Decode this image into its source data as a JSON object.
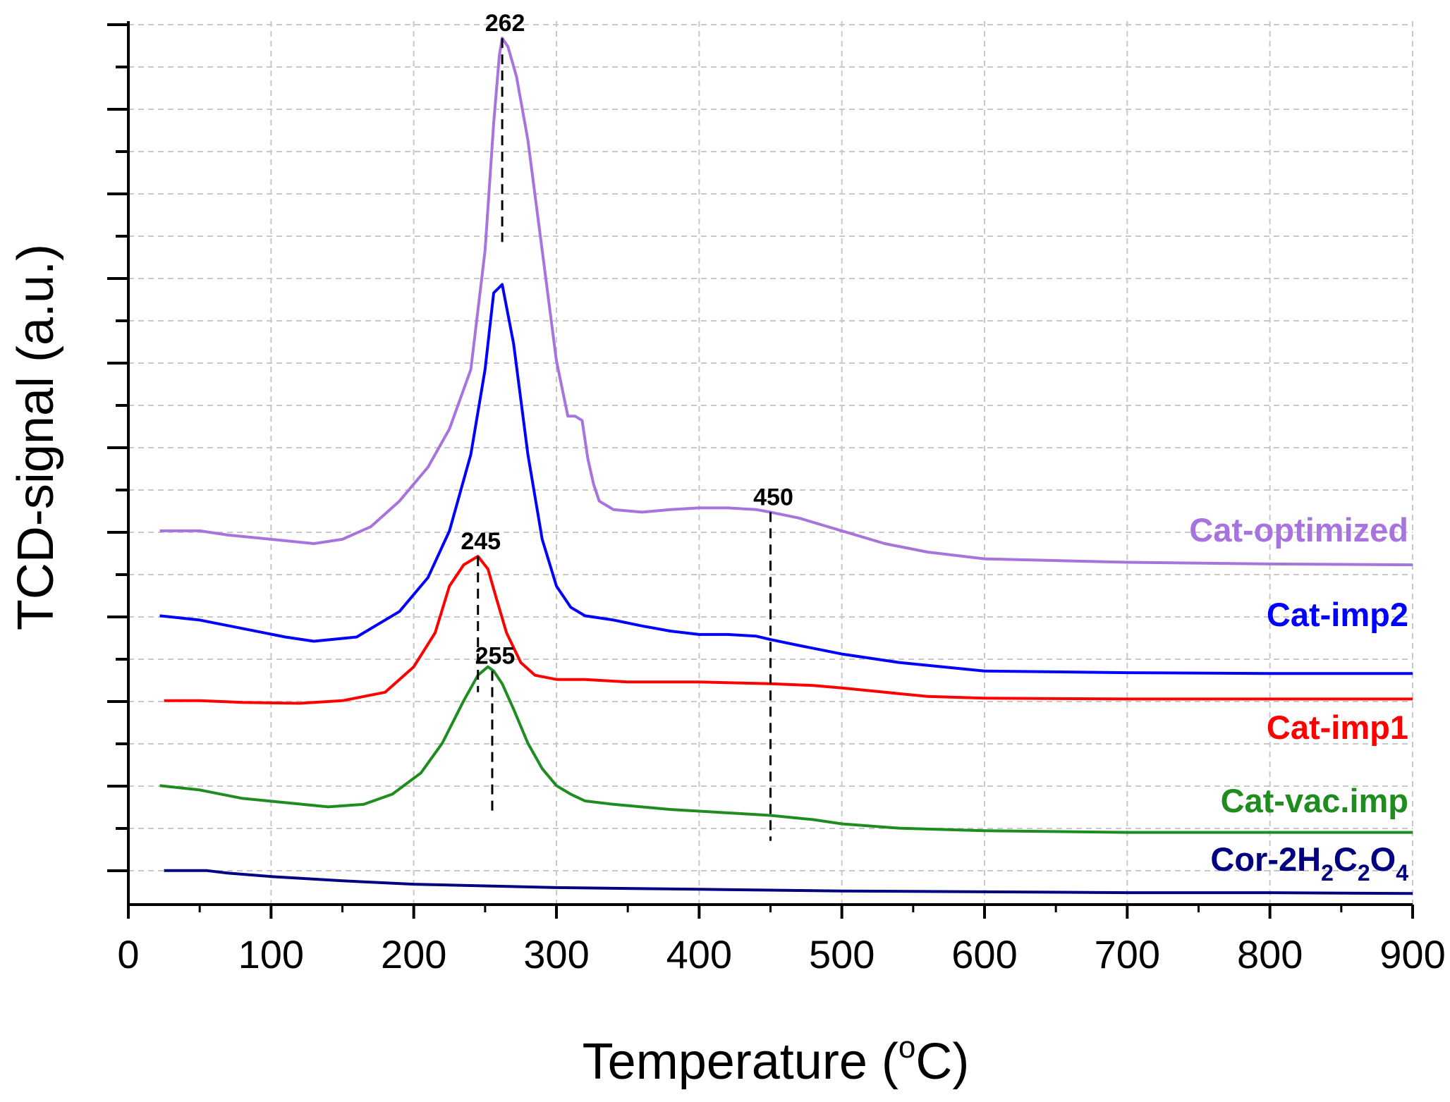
{
  "chart_data": {
    "type": "line",
    "xlabel_main": "Temperature (",
    "xlabel_sup": "o",
    "xlabel_end": "C)",
    "ylabel": "TCD-signal (a.u.)",
    "xlim": [
      0,
      900
    ],
    "ylim": [
      -0.4,
      10
    ],
    "x_ticks": [
      0,
      100,
      200,
      300,
      400,
      500,
      600,
      700,
      800,
      900
    ],
    "y_tick_labels_shown": false,
    "grid": true,
    "series": [
      {
        "name": "Cat-optimized",
        "color": "#a773dd",
        "x": [
          22,
          40,
          50,
          70,
          100,
          130,
          150,
          170,
          190,
          210,
          225,
          240,
          250,
          256,
          260,
          262,
          266,
          272,
          280,
          290,
          300,
          308,
          313,
          318,
          322,
          326,
          330,
          340,
          360,
          380,
          400,
          420,
          440,
          450,
          470,
          500,
          530,
          560,
          600,
          700,
          800,
          900
        ],
        "y": [
          4.0,
          4.0,
          4.0,
          3.95,
          3.9,
          3.85,
          3.9,
          4.05,
          4.35,
          4.75,
          5.2,
          5.9,
          7.3,
          8.8,
          9.6,
          9.8,
          9.7,
          9.35,
          8.6,
          7.3,
          6.0,
          5.35,
          5.35,
          5.3,
          4.85,
          4.55,
          4.35,
          4.25,
          4.22,
          4.25,
          4.27,
          4.27,
          4.25,
          4.22,
          4.15,
          4.0,
          3.85,
          3.75,
          3.67,
          3.63,
          3.61,
          3.6
        ]
      },
      {
        "name": "Cat-imp2",
        "color": "#0000ff",
        "x": [
          22,
          50,
          80,
          110,
          130,
          160,
          190,
          210,
          225,
          240,
          250,
          256,
          262,
          270,
          280,
          290,
          300,
          310,
          320,
          340,
          360,
          380,
          400,
          420,
          440,
          450,
          470,
          500,
          540,
          600,
          700,
          800,
          900
        ],
        "y": [
          3.0,
          2.95,
          2.85,
          2.75,
          2.7,
          2.75,
          3.05,
          3.45,
          4.0,
          4.9,
          5.9,
          6.8,
          6.9,
          6.2,
          4.9,
          3.9,
          3.35,
          3.1,
          3.0,
          2.95,
          2.88,
          2.82,
          2.78,
          2.78,
          2.76,
          2.72,
          2.65,
          2.55,
          2.45,
          2.35,
          2.33,
          2.32,
          2.32
        ]
      },
      {
        "name": "Cat-imp1",
        "color": "#ff0000",
        "x": [
          25,
          50,
          80,
          120,
          150,
          180,
          200,
          215,
          225,
          235,
          245,
          252,
          258,
          265,
          275,
          285,
          300,
          320,
          350,
          400,
          450,
          480,
          500,
          530,
          560,
          600,
          700,
          800,
          900
        ],
        "y": [
          2.0,
          2.0,
          1.98,
          1.97,
          2.0,
          2.1,
          2.4,
          2.8,
          3.35,
          3.6,
          3.7,
          3.55,
          3.2,
          2.8,
          2.45,
          2.3,
          2.25,
          2.25,
          2.22,
          2.22,
          2.2,
          2.18,
          2.15,
          2.1,
          2.05,
          2.03,
          2.02,
          2.02,
          2.02
        ]
      },
      {
        "name": "Cat-vac.imp",
        "color": "#1e8c1e",
        "x": [
          22,
          50,
          80,
          110,
          140,
          165,
          185,
          205,
          220,
          235,
          245,
          252,
          256,
          262,
          270,
          280,
          290,
          300,
          310,
          320,
          340,
          380,
          420,
          450,
          480,
          500,
          540,
          600,
          700,
          800,
          900
        ],
        "y": [
          1.0,
          0.95,
          0.85,
          0.8,
          0.75,
          0.78,
          0.9,
          1.15,
          1.5,
          2.0,
          2.3,
          2.4,
          2.35,
          2.2,
          1.9,
          1.5,
          1.2,
          1.0,
          0.9,
          0.82,
          0.78,
          0.72,
          0.68,
          0.65,
          0.6,
          0.55,
          0.5,
          0.47,
          0.45,
          0.45,
          0.45
        ]
      },
      {
        "name": "Cor-2H2C2O4",
        "color": "#000080",
        "x": [
          25,
          40,
          55,
          70,
          100,
          150,
          200,
          300,
          400,
          500,
          600,
          700,
          800,
          900
        ],
        "y": [
          0.0,
          0.0,
          0.0,
          -0.03,
          -0.07,
          -0.12,
          -0.16,
          -0.2,
          -0.22,
          -0.24,
          -0.25,
          -0.26,
          -0.26,
          -0.27
        ]
      }
    ],
    "series_labels": [
      {
        "base": "Cat-optimized",
        "subs": []
      },
      {
        "base": "Cat-imp2",
        "subs": []
      },
      {
        "base": "Cat-imp1",
        "subs": []
      },
      {
        "base": "Cat-vac.imp",
        "subs": []
      },
      {
        "base": "",
        "parts": [
          "Cor-2H",
          "2",
          "C",
          "2",
          "O",
          "4"
        ]
      }
    ],
    "annotations": [
      {
        "label": "262",
        "x": 262,
        "y_top": 9.8,
        "y_bottom": 7.4
      },
      {
        "label": "450",
        "x": 450,
        "y_top": 4.22,
        "y_bottom": 0.35
      },
      {
        "label": "245",
        "x": 245,
        "y_top": 3.7,
        "y_bottom": 2.1
      },
      {
        "label": "255",
        "x": 255,
        "y_top": 2.35,
        "y_bottom": 0.7
      }
    ]
  }
}
